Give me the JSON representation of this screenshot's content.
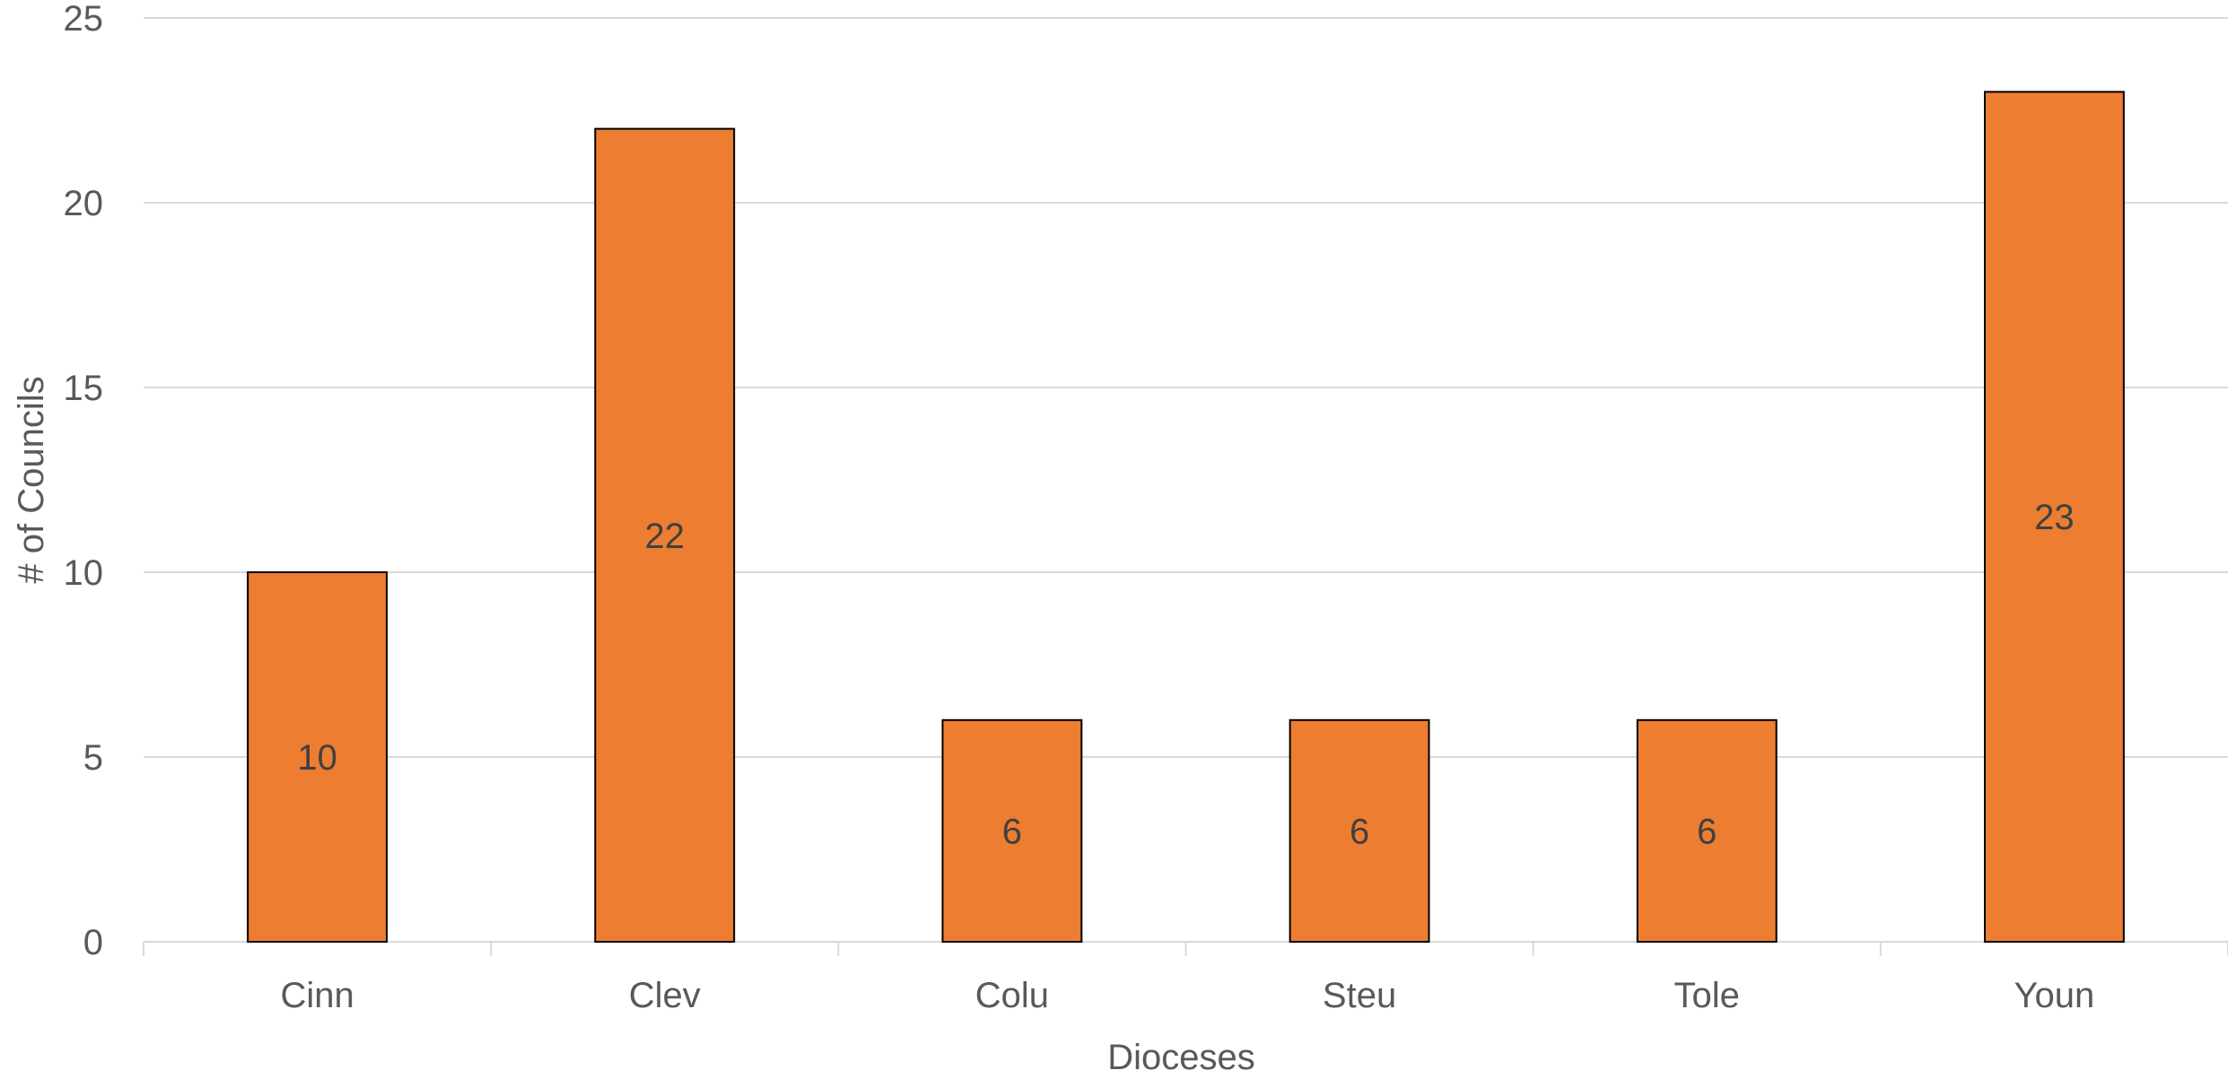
{
  "chart_data": {
    "type": "bar",
    "title": "",
    "xlabel": "Dioceses",
    "ylabel": "# of Councils",
    "categories": [
      "Cinn",
      "Clev",
      "Colu",
      "Steu",
      "Tole",
      "Youn"
    ],
    "series": [
      {
        "values": [
          10,
          22,
          6,
          6,
          6,
          23
        ],
        "color": "#ED7D31",
        "border_color": "#000000"
      }
    ],
    "ylim": [
      0,
      25
    ],
    "yticks": [
      0,
      5,
      10,
      15,
      20,
      25
    ],
    "grid": true,
    "legend": "none",
    "data_labels": true
  }
}
